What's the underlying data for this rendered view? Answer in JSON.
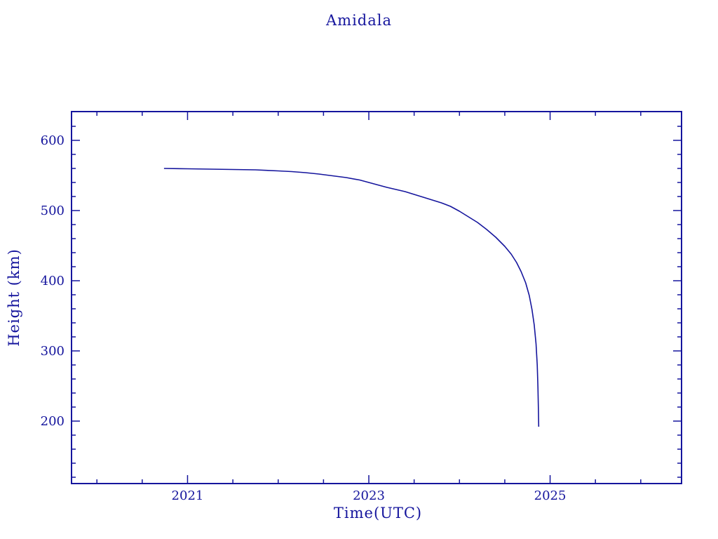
{
  "colors": {
    "plot_foreground": "#15159d",
    "background": "#ffffff"
  },
  "chart_data": {
    "type": "line",
    "title": "Amidala",
    "xlabel": "Time(UTC)",
    "ylabel": "Height (km)",
    "xlim": [
      2019.72,
      2026.45
    ],
    "ylim": [
      111,
      641
    ],
    "x_major_ticks": [
      2021,
      2023,
      2025
    ],
    "x_major_tick_labels": [
      "2021",
      "2023",
      "2025"
    ],
    "x_minor_tick_interval": 0.5,
    "y_major_ticks": [
      200,
      300,
      400,
      500,
      600
    ],
    "y_major_tick_labels": [
      "200",
      "300",
      "400",
      "500",
      "600"
    ],
    "y_minor_tick_interval": 20,
    "grid": false,
    "legend_position": "none",
    "frame": "box-with-inward-ticks",
    "series": [
      {
        "name": "satellite-height",
        "color": "#15159d",
        "points": [
          [
            2020.74,
            560.0
          ],
          [
            2021.0,
            559.5
          ],
          [
            2021.25,
            559.0
          ],
          [
            2021.5,
            558.5
          ],
          [
            2021.75,
            558.0
          ],
          [
            2022.0,
            556.5
          ],
          [
            2022.15,
            555.5
          ],
          [
            2022.3,
            554.0
          ],
          [
            2022.45,
            552.0
          ],
          [
            2022.6,
            549.5
          ],
          [
            2022.75,
            547.0
          ],
          [
            2022.9,
            543.5
          ],
          [
            2023.0,
            540.0
          ],
          [
            2023.1,
            536.5
          ],
          [
            2023.2,
            533.0
          ],
          [
            2023.3,
            530.0
          ],
          [
            2023.4,
            527.0
          ],
          [
            2023.5,
            523.0
          ],
          [
            2023.6,
            519.0
          ],
          [
            2023.7,
            515.0
          ],
          [
            2023.8,
            511.0
          ],
          [
            2023.9,
            506.0
          ],
          [
            2024.0,
            499.0
          ],
          [
            2024.1,
            491.0
          ],
          [
            2024.2,
            483.0
          ],
          [
            2024.3,
            473.0
          ],
          [
            2024.4,
            462.0
          ],
          [
            2024.5,
            449.0
          ],
          [
            2024.57,
            438.0
          ],
          [
            2024.63,
            426.0
          ],
          [
            2024.68,
            413.0
          ],
          [
            2024.73,
            397.0
          ],
          [
            2024.77,
            379.0
          ],
          [
            2024.8,
            359.0
          ],
          [
            2024.825,
            337.0
          ],
          [
            2024.845,
            310.0
          ],
          [
            2024.858,
            280.0
          ],
          [
            2024.866,
            248.0
          ],
          [
            2024.871,
            215.0
          ],
          [
            2024.874,
            192.0
          ]
        ]
      }
    ]
  }
}
